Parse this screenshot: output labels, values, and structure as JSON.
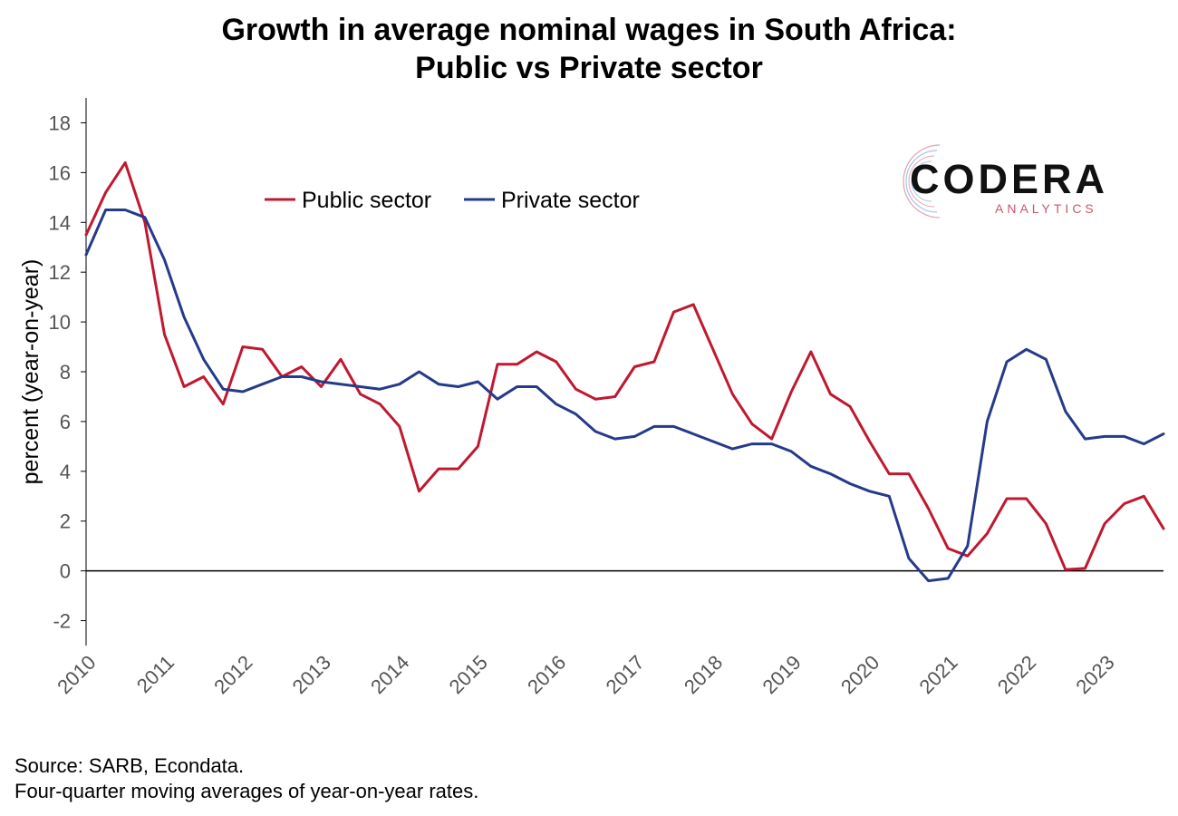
{
  "title_line1": "Growth in average nominal wages in South Africa:",
  "title_line2": "Public vs Private sector",
  "source_line1": "Source: SARB, Econdata.",
  "source_line2": "Four-quarter moving averages of year-on-year rates.",
  "logo": {
    "wordmark": "CODERA",
    "subtext": "ANALYTICS",
    "accent_color": "#c9566b"
  },
  "chart_data": {
    "type": "line",
    "ylabel": "percent (year-on-year)",
    "xlabel": "",
    "ylim": [
      -3,
      19
    ],
    "yticks": [
      -2,
      0,
      2,
      4,
      6,
      8,
      10,
      12,
      14,
      16,
      18
    ],
    "xlim": [
      2010.0,
      2023.75
    ],
    "xticks": [
      "2010",
      "2011",
      "2012",
      "2013",
      "2014",
      "2015",
      "2016",
      "2017",
      "2018",
      "2019",
      "2020",
      "2021",
      "2022",
      "2023"
    ],
    "grid": false,
    "zero_line": true,
    "legend_position": "top-left",
    "x": [
      "2010Q1",
      "2010Q2",
      "2010Q3",
      "2010Q4",
      "2011Q1",
      "2011Q2",
      "2011Q3",
      "2011Q4",
      "2012Q1",
      "2012Q2",
      "2012Q3",
      "2012Q4",
      "2013Q1",
      "2013Q2",
      "2013Q3",
      "2013Q4",
      "2014Q1",
      "2014Q2",
      "2014Q3",
      "2014Q4",
      "2015Q1",
      "2015Q2",
      "2015Q3",
      "2015Q4",
      "2016Q1",
      "2016Q2",
      "2016Q3",
      "2016Q4",
      "2017Q1",
      "2017Q2",
      "2017Q3",
      "2017Q4",
      "2018Q1",
      "2018Q2",
      "2018Q3",
      "2018Q4",
      "2019Q1",
      "2019Q2",
      "2019Q3",
      "2019Q4",
      "2020Q1",
      "2020Q2",
      "2020Q3",
      "2020Q4",
      "2021Q1",
      "2021Q2",
      "2021Q3",
      "2021Q4",
      "2022Q1",
      "2022Q2",
      "2022Q3",
      "2022Q4",
      "2023Q1",
      "2023Q2",
      "2023Q3",
      "2023Q4"
    ],
    "series": [
      {
        "name": "Public sector",
        "color": "#c0182f",
        "values": [
          13.5,
          15.2,
          16.4,
          14.0,
          9.5,
          7.4,
          7.8,
          6.7,
          9.0,
          8.9,
          7.8,
          8.2,
          7.4,
          8.5,
          7.1,
          6.7,
          5.8,
          3.2,
          4.1,
          4.1,
          5.0,
          8.3,
          8.3,
          8.8,
          8.4,
          7.3,
          6.9,
          7.0,
          8.2,
          8.4,
          10.4,
          10.7,
          8.9,
          7.1,
          5.9,
          5.3,
          7.2,
          8.8,
          7.1,
          6.6,
          5.2,
          3.9,
          3.9,
          2.5,
          0.9,
          0.6,
          1.5,
          2.9,
          2.9,
          1.9,
          0.05,
          0.1,
          1.9,
          2.7,
          3.0,
          1.7
        ]
      },
      {
        "name": "Private sector",
        "color": "#253a8a",
        "values": [
          12.7,
          14.5,
          14.5,
          14.2,
          12.5,
          10.2,
          8.5,
          7.3,
          7.2,
          7.5,
          7.8,
          7.8,
          7.6,
          7.5,
          7.4,
          7.3,
          7.5,
          8.0,
          7.5,
          7.4,
          7.6,
          6.9,
          7.4,
          7.4,
          6.7,
          6.3,
          5.6,
          5.3,
          5.4,
          5.8,
          5.8,
          5.5,
          5.2,
          4.9,
          5.1,
          5.1,
          4.8,
          4.2,
          3.9,
          3.5,
          3.2,
          3.0,
          0.5,
          -0.4,
          -0.3,
          1.0,
          6.0,
          8.4,
          8.9,
          8.5,
          6.4,
          5.3,
          5.4,
          5.4,
          5.1,
          5.5
        ]
      }
    ]
  }
}
